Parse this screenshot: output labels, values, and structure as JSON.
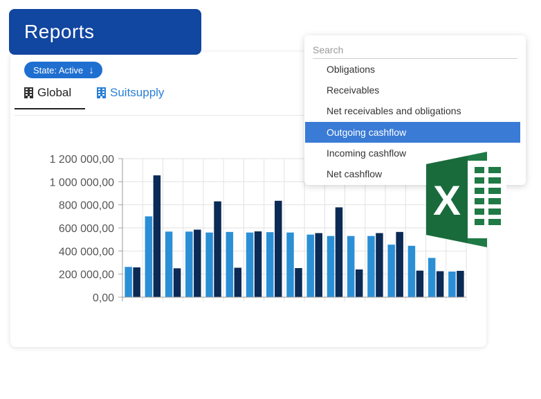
{
  "header": {
    "title": "Reports"
  },
  "filter": {
    "state_label": "State: Active",
    "arrow_icon": "arrow-down-icon"
  },
  "tabs": [
    {
      "label": "Global",
      "icon": "building-icon",
      "active": true
    },
    {
      "label": "Suitsupply",
      "icon": "building-icon",
      "active": false
    }
  ],
  "dropdown": {
    "search_placeholder": "Search",
    "items": [
      {
        "label": "Obligations",
        "selected": false
      },
      {
        "label": "Receivables",
        "selected": false
      },
      {
        "label": "Net receivables and obligations",
        "selected": false
      },
      {
        "label": "Outgoing cashflow",
        "selected": true
      },
      {
        "label": "Incoming cashflow",
        "selected": false
      },
      {
        "label": "Net cashflow",
        "selected": false
      }
    ]
  },
  "colors": {
    "accent": "#1146a1",
    "series_light": "#2b8fd6",
    "series_dark": "#0b2a55",
    "selected": "#3a7bd5",
    "excel_green": "#1f7a45"
  },
  "chart_data": {
    "type": "bar",
    "title": "",
    "xlabel": "",
    "ylabel": "",
    "ylim": [
      0,
      1200000
    ],
    "y_ticks": [
      "0,00",
      "200 000,00",
      "400 000,00",
      "600 000,00",
      "800 000,00",
      "1 000 000,00",
      "1 200 000,00"
    ],
    "grid": true,
    "series": [
      {
        "values": [
          262000,
          700000,
          568000,
          568000,
          560000,
          565000,
          560000,
          563000,
          560000,
          542000,
          530000,
          530000,
          530000,
          455000,
          445000,
          340000,
          222000
        ]
      },
      {
        "values": [
          258000,
          1055000,
          250000,
          585000,
          830000,
          255000,
          570000,
          835000,
          252000,
          555000,
          778000,
          240000,
          555000,
          565000,
          230000,
          225000,
          228000
        ]
      }
    ]
  },
  "excel_icon": {
    "letter": "X"
  }
}
